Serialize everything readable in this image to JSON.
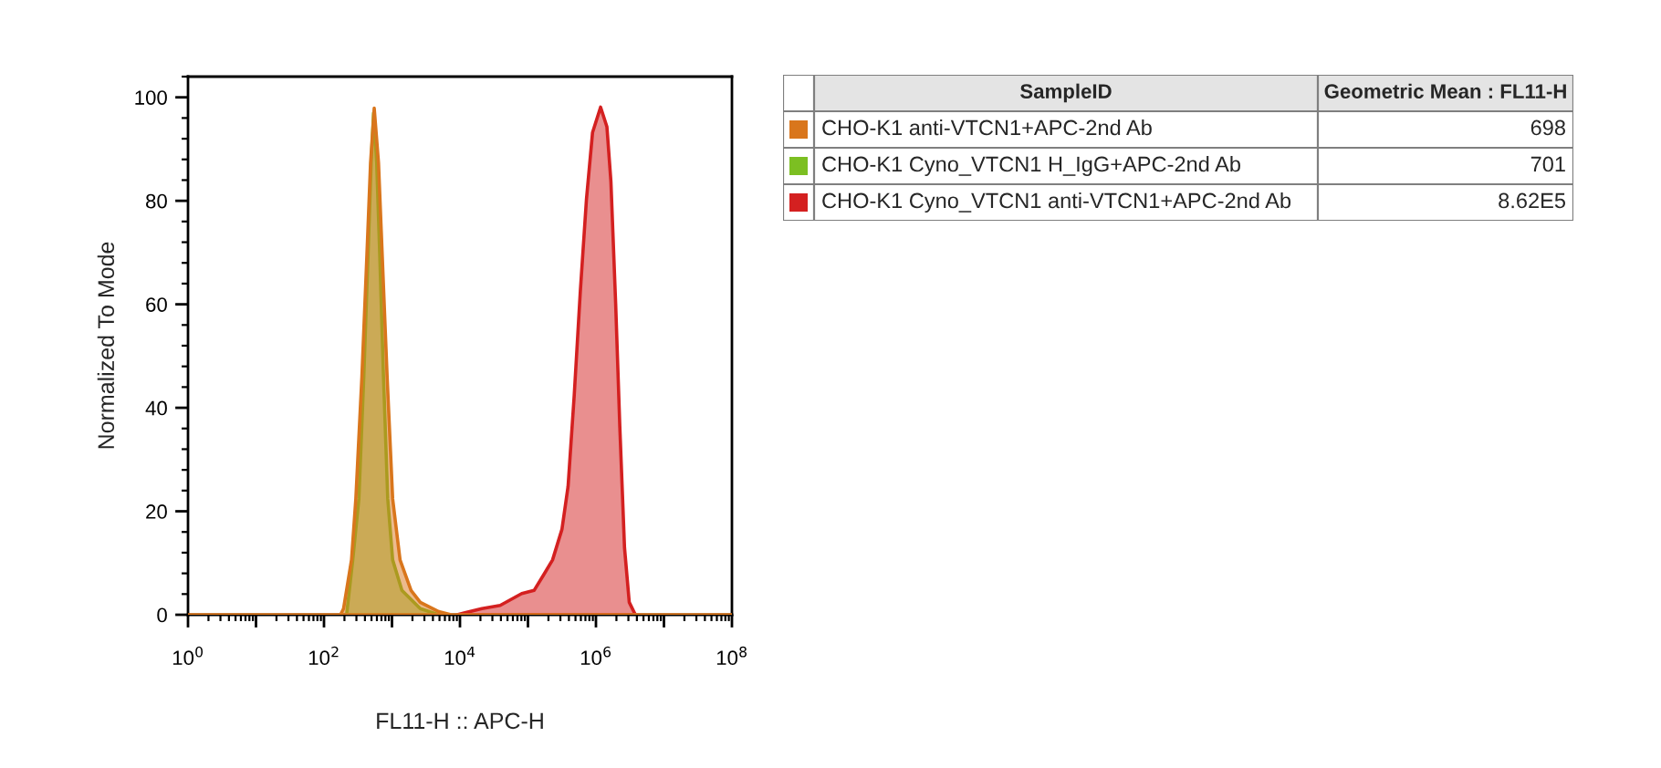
{
  "chart_data": {
    "type": "area",
    "xlabel": "FL11-H :: APC-H",
    "ylabel": "Normalized To Mode",
    "legend_title": "SampleID",
    "legend": "right",
    "log": "x",
    "xlim": [
      1,
      100000000
    ],
    "xticks": [
      {
        "value": 1,
        "label": "10$^{0}$"
      },
      {
        "value": 10,
        "label": null
      },
      {
        "value": 100,
        "label": "10$^{2}$"
      },
      {
        "value": 1000,
        "label": null
      },
      {
        "value": 10000,
        "label": "10$^{4}$"
      },
      {
        "value": 100000,
        "label": null
      },
      {
        "value": 1000000,
        "label": "10$^{6}$"
      },
      {
        "value": 10000000,
        "label": null
      },
      {
        "value": 100000000,
        "label": "10$^{8}$"
      }
    ],
    "ylim": [
      0,
      104
    ],
    "yticks": [
      0,
      20,
      40,
      60,
      80,
      100
    ],
    "series": [
      {
        "name": "CHO-K1 anti-VTCN1+APC-2nd Ab",
        "color": "#d9761c",
        "x": [
          1,
          175,
          194,
          254,
          294,
          361,
          428,
          484,
          548,
          634,
          718,
          849,
          1023,
          1315,
          1910,
          2610,
          4880,
          7400,
          100000000
        ],
        "values": [
          0,
          0,
          1.2,
          10.6,
          22.4,
          46,
          69.6,
          87.3,
          97.9,
          87.3,
          69.6,
          46,
          22.4,
          10.6,
          4.7,
          2.4,
          0.6,
          0,
          0
        ]
      },
      {
        "name": "CHO-K1 Cyno_VTCN1 H_IgG+APC-2nd Ab",
        "color": "#7cbf22",
        "x": [
          215,
          265,
          326,
          385,
          445,
          494,
          537,
          596,
          661,
          750,
          867,
          1023,
          1400,
          2610,
          4880
        ],
        "values": [
          0,
          10.6,
          22.4,
          46,
          69.6,
          87.3,
          97,
          87.3,
          69.6,
          46,
          22.4,
          10.6,
          4.7,
          1.2,
          0
        ]
      },
      {
        "name": "CHO-K1 Cyno_VTCN1 anti-VTCN1+APC-2nd Ab",
        "color": "#d42020",
        "x": [
          9100,
          21000,
          39000,
          81000,
          123000,
          170000,
          230000,
          316000,
          389000,
          479000,
          589000,
          724000,
          891000,
          1170000,
          1450000,
          1660000,
          1950000,
          2240000,
          2630000,
          3090000,
          3800000
        ],
        "values": [
          0,
          1.2,
          1.8,
          4.1,
          4.7,
          7.7,
          10.6,
          16.5,
          24.8,
          42.4,
          62.5,
          80.2,
          93.2,
          98.1,
          94.3,
          83.7,
          60.1,
          36.6,
          13,
          2.4,
          0
        ]
      }
    ],
    "annotations": [
      "Geometric Mean : FL11-H",
      "698",
      "701",
      "8.62E5"
    ]
  }
}
